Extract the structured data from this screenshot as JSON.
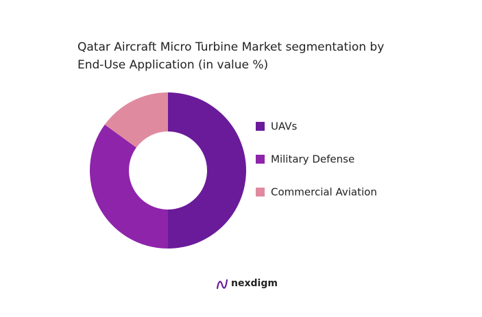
{
  "chart_data": {
    "type": "donut",
    "title": "Qatar Aircraft Micro Turbine Market segmentation by End-Use Application (in value %)",
    "categories": [
      "UAVs",
      "Military Defense",
      "Commercial Aviation"
    ],
    "values": [
      50,
      35,
      15
    ],
    "colors": [
      "#6a1b9a",
      "#8e24aa",
      "#e08aa0"
    ],
    "logo": "nexdigm"
  }
}
